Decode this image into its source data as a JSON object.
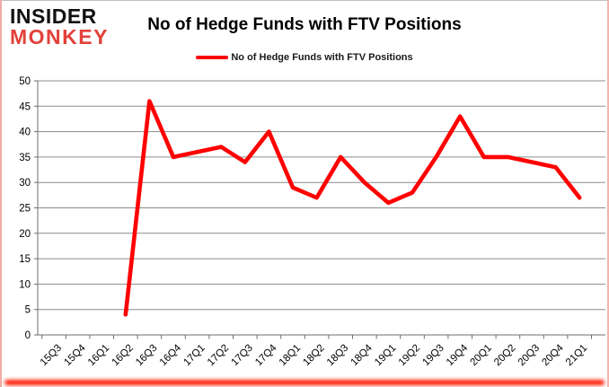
{
  "logo": {
    "line1": "INSIDER",
    "line2": "MONKEY"
  },
  "header": {
    "title": "No of Hedge Funds with FTV Positions"
  },
  "legend": {
    "label": "No of Hedge Funds with FTV Positions"
  },
  "colors": {
    "line": "#FF0000",
    "logo_red": "#e2413a",
    "grid": "#8c8c8c",
    "axis": "#6e6e6e",
    "tick_text": "#000000",
    "border_pink": "#f2aba4",
    "bottom_glow_red": "#ff1500"
  },
  "chart_data": {
    "type": "line",
    "title": "No of Hedge Funds with FTV Positions",
    "legend_entries": [
      "No of Hedge Funds with FTV Positions"
    ],
    "legend_position": "top",
    "categories": [
      "15Q3",
      "15Q4",
      "16Q1",
      "16Q2",
      "16Q3",
      "16Q4",
      "17Q1",
      "17Q2",
      "17Q3",
      "17Q4",
      "18Q1",
      "18Q2",
      "18Q3",
      "18Q4",
      "19Q1",
      "19Q2",
      "19Q3",
      "19Q4",
      "20Q1",
      "20Q2",
      "20Q3",
      "20Q4",
      "21Q1"
    ],
    "series": [
      {
        "name": "No of Hedge Funds with FTV Positions",
        "color": "#FF0000",
        "values": [
          null,
          null,
          null,
          4,
          46,
          35,
          36,
          37,
          34,
          40,
          29,
          27,
          35,
          30,
          26,
          28,
          35,
          43,
          35,
          35,
          34,
          33,
          27
        ]
      }
    ],
    "xlabel": "",
    "ylabel": "",
    "ylim": [
      0,
      50
    ],
    "yticks": [
      0,
      5,
      10,
      15,
      20,
      25,
      30,
      35,
      40,
      45,
      50
    ],
    "grid": true,
    "xlabel_rotation": -45
  }
}
